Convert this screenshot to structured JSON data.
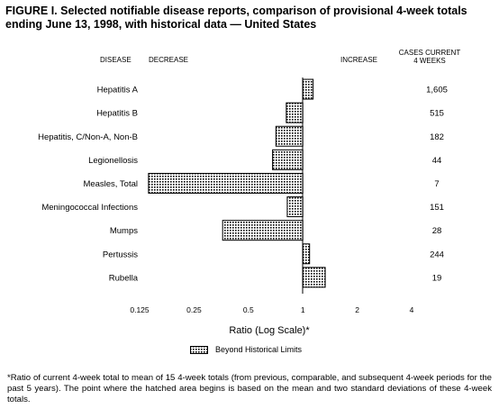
{
  "title": {
    "line1": "FIGURE I. Selected notifiable disease reports, comparison of provisional 4-week totals",
    "line2": "ending June 13, 1998, with historical data — United States"
  },
  "headers": {
    "disease": "DISEASE",
    "decrease": "DECREASE",
    "increase": "INCREASE",
    "cases_line1": "CASES CURRENT",
    "cases_line2": "4 WEEKS"
  },
  "chart_data": {
    "type": "bar",
    "orientation": "horizontal",
    "title": "Selected notifiable disease reports, comparison of provisional 4-week totals ending June 13, 1998, with historical data — United States",
    "xlabel": "Ratio (Log Scale)*",
    "x_scale": "log2",
    "xlim": [
      0.125,
      4
    ],
    "baseline": 1,
    "x_ticks": [
      "0.125",
      "0.25",
      "0.5",
      "1",
      "2",
      "4"
    ],
    "categories": [
      "Hepatitis A",
      "Hepatitis B",
      "Hepatitis, C/Non-A, Non-B",
      "Legionellosis",
      "Measles, Total",
      "Meningococcal Infections",
      "Mumps",
      "Pertussis",
      "Rubella"
    ],
    "values": [
      1.14,
      0.81,
      0.71,
      0.68,
      0.14,
      0.82,
      0.36,
      1.09,
      1.33
    ],
    "cases_current_4_weeks": [
      "1,605",
      "515",
      "182",
      "44",
      "7",
      "151",
      "28",
      "244",
      "19"
    ],
    "legend": "Beyond Historical Limits",
    "grid": false
  },
  "footnote": "*Ratio of current 4-week total to mean of 15 4-week totals (from previous, comparable, and subsequent 4-week periods for the past 5 years). The point where the hatched area begins is based on the mean and two standard deviations of these 4-week totals."
}
